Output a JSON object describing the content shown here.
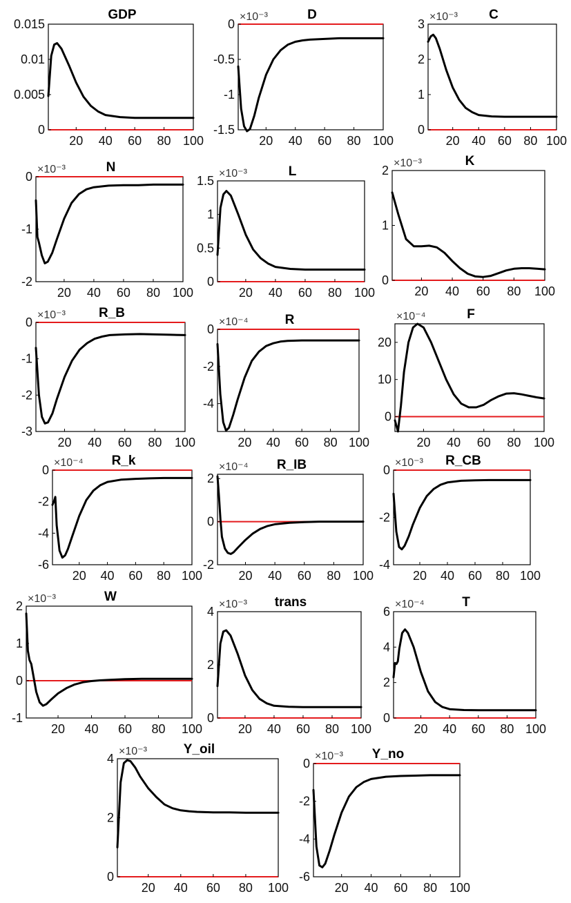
{
  "figure": {
    "background": "#ffffff",
    "line_color": "#000000",
    "zero_line_color": "#e41a1c"
  },
  "chart_data": [
    {
      "type": "line",
      "title": "GDP",
      "multiplier": "",
      "xlim": [
        1,
        100
      ],
      "ylim": [
        0,
        0.015
      ],
      "yticks": [
        {
          "v": 0,
          "l": "0"
        },
        {
          "v": 0.005,
          "l": "0.005"
        },
        {
          "v": 0.01,
          "l": "0.01"
        },
        {
          "v": 0.015,
          "l": "0.015"
        }
      ],
      "xticks": [
        20,
        40,
        60,
        80,
        100
      ],
      "x": [
        1,
        3,
        5,
        7,
        10,
        15,
        20,
        25,
        30,
        35,
        40,
        50,
        60,
        70,
        80,
        90,
        100
      ],
      "y": [
        0.0048,
        0.0105,
        0.0121,
        0.0123,
        0.0115,
        0.0092,
        0.0067,
        0.0047,
        0.0034,
        0.0026,
        0.0021,
        0.0018,
        0.0017,
        0.0017,
        0.0017,
        0.0017,
        0.0017
      ]
    },
    {
      "type": "line",
      "title": "D",
      "multiplier": "×10⁻³",
      "xlim": [
        1,
        100
      ],
      "ylim": [
        -1.5,
        0
      ],
      "yticks": [
        {
          "v": -1.5,
          "l": "-1.5"
        },
        {
          "v": -1,
          "l": "-1"
        },
        {
          "v": -0.5,
          "l": "-0.5"
        },
        {
          "v": 0,
          "l": "0"
        }
      ],
      "xticks": [
        20,
        40,
        60,
        80,
        100
      ],
      "x": [
        1,
        3,
        5,
        7,
        9,
        12,
        15,
        20,
        25,
        30,
        35,
        40,
        45,
        50,
        60,
        70,
        80,
        90,
        100
      ],
      "y": [
        -0.6,
        -1.2,
        -1.45,
        -1.52,
        -1.49,
        -1.3,
        -1.05,
        -0.72,
        -0.5,
        -0.37,
        -0.29,
        -0.25,
        -0.23,
        -0.22,
        -0.21,
        -0.2,
        -0.2,
        -0.2,
        -0.2
      ]
    },
    {
      "type": "line",
      "title": "C",
      "multiplier": "×10⁻³",
      "xlim": [
        1,
        100
      ],
      "ylim": [
        0,
        3
      ],
      "yticks": [
        {
          "v": 0,
          "l": "0"
        },
        {
          "v": 1,
          "l": "1"
        },
        {
          "v": 2,
          "l": "2"
        },
        {
          "v": 3,
          "l": "3"
        }
      ],
      "xticks": [
        20,
        40,
        60,
        80,
        100
      ],
      "x": [
        1,
        3,
        5,
        7,
        10,
        15,
        20,
        25,
        30,
        35,
        40,
        50,
        60,
        70,
        80,
        90,
        100
      ],
      "y": [
        2.5,
        2.65,
        2.7,
        2.6,
        2.3,
        1.7,
        1.2,
        0.85,
        0.62,
        0.5,
        0.42,
        0.38,
        0.37,
        0.37,
        0.37,
        0.37,
        0.37
      ]
    },
    {
      "type": "line",
      "title": "N",
      "multiplier": "×10⁻³",
      "xlim": [
        1,
        100
      ],
      "ylim": [
        -2,
        0
      ],
      "yticks": [
        {
          "v": -2,
          "l": "-2"
        },
        {
          "v": -1,
          "l": "-1"
        },
        {
          "v": 0,
          "l": "0"
        }
      ],
      "xticks": [
        20,
        40,
        60,
        80,
        100
      ],
      "x": [
        1,
        2,
        3,
        5,
        7,
        9,
        12,
        15,
        20,
        25,
        30,
        35,
        40,
        50,
        60,
        70,
        80,
        90,
        100
      ],
      "y": [
        -0.45,
        -1.15,
        -1.25,
        -1.5,
        -1.65,
        -1.62,
        -1.45,
        -1.2,
        -0.8,
        -0.5,
        -0.33,
        -0.24,
        -0.2,
        -0.17,
        -0.16,
        -0.16,
        -0.15,
        -0.15,
        -0.15
      ]
    },
    {
      "type": "line",
      "title": "L",
      "multiplier": "×10⁻³",
      "xlim": [
        1,
        100
      ],
      "ylim": [
        0,
        1.5
      ],
      "yticks": [
        {
          "v": 0,
          "l": "0"
        },
        {
          "v": 0.5,
          "l": "0.5"
        },
        {
          "v": 1,
          "l": "1"
        },
        {
          "v": 1.5,
          "l": "1.5"
        }
      ],
      "xticks": [
        20,
        40,
        60,
        80,
        100
      ],
      "x": [
        1,
        3,
        5,
        7,
        10,
        15,
        20,
        25,
        30,
        35,
        40,
        50,
        60,
        70,
        80,
        90,
        100
      ],
      "y": [
        0.4,
        1.1,
        1.3,
        1.35,
        1.28,
        1.0,
        0.7,
        0.48,
        0.35,
        0.27,
        0.22,
        0.19,
        0.18,
        0.18,
        0.18,
        0.18,
        0.18
      ]
    },
    {
      "type": "line",
      "title": "K",
      "multiplier": "×10⁻³",
      "xlim": [
        1,
        100
      ],
      "ylim": [
        0,
        2
      ],
      "yticks": [
        {
          "v": 0,
          "l": "0"
        },
        {
          "v": 1,
          "l": "1"
        },
        {
          "v": 2,
          "l": "2"
        }
      ],
      "xticks": [
        20,
        40,
        60,
        80,
        100
      ],
      "x": [
        1,
        5,
        10,
        15,
        20,
        25,
        30,
        35,
        40,
        45,
        50,
        55,
        60,
        65,
        70,
        75,
        80,
        85,
        90,
        95,
        100
      ],
      "y": [
        1.6,
        1.2,
        0.75,
        0.62,
        0.62,
        0.63,
        0.6,
        0.5,
        0.35,
        0.22,
        0.12,
        0.07,
        0.06,
        0.08,
        0.13,
        0.18,
        0.21,
        0.22,
        0.22,
        0.21,
        0.2
      ]
    },
    {
      "type": "line",
      "title": "R_B",
      "multiplier": "×10⁻³",
      "xlim": [
        1,
        100
      ],
      "ylim": [
        -3,
        0
      ],
      "yticks": [
        {
          "v": -3,
          "l": "-3"
        },
        {
          "v": -2,
          "l": "-2"
        },
        {
          "v": -1,
          "l": "-1"
        },
        {
          "v": 0,
          "l": "0"
        }
      ],
      "xticks": [
        20,
        40,
        60,
        80,
        100
      ],
      "x": [
        1,
        3,
        5,
        7,
        9,
        12,
        15,
        20,
        25,
        30,
        35,
        40,
        45,
        50,
        60,
        70,
        80,
        90,
        100
      ],
      "y": [
        -0.7,
        -2.0,
        -2.6,
        -2.78,
        -2.75,
        -2.5,
        -2.1,
        -1.5,
        -1.05,
        -0.75,
        -0.57,
        -0.45,
        -0.39,
        -0.35,
        -0.33,
        -0.32,
        -0.33,
        -0.34,
        -0.35
      ]
    },
    {
      "type": "line",
      "title": "R",
      "multiplier": "×10⁻⁴",
      "xlim": [
        1,
        100
      ],
      "ylim": [
        -5.5,
        0
      ],
      "yticks": [
        {
          "v": -4,
          "l": "-4"
        },
        {
          "v": -2,
          "l": "-2"
        },
        {
          "v": 0,
          "l": "0"
        }
      ],
      "xticks": [
        20,
        40,
        60,
        80,
        100
      ],
      "x": [
        1,
        3,
        5,
        7,
        9,
        12,
        15,
        20,
        25,
        30,
        35,
        40,
        45,
        50,
        60,
        70,
        80,
        90,
        100
      ],
      "y": [
        -0.8,
        -3.5,
        -5.0,
        -5.45,
        -5.3,
        -4.6,
        -3.8,
        -2.6,
        -1.7,
        -1.2,
        -0.9,
        -0.75,
        -0.66,
        -0.62,
        -0.6,
        -0.6,
        -0.6,
        -0.6,
        -0.6
      ]
    },
    {
      "type": "line",
      "title": "F",
      "multiplier": "×10⁻⁴",
      "xlim": [
        1,
        100
      ],
      "ylim": [
        -4,
        25
      ],
      "yticks": [
        {
          "v": 0,
          "l": "0"
        },
        {
          "v": 10,
          "l": "10"
        },
        {
          "v": 20,
          "l": "20"
        }
      ],
      "xticks": [
        20,
        40,
        60,
        80,
        100
      ],
      "x": [
        1,
        3,
        5,
        7,
        10,
        13,
        16,
        20,
        25,
        30,
        35,
        40,
        45,
        50,
        55,
        60,
        65,
        70,
        75,
        80,
        85,
        90,
        95,
        100
      ],
      "y": [
        -1,
        -4,
        3,
        12,
        20,
        24,
        25,
        24,
        20,
        15,
        10,
        6,
        3.5,
        2.5,
        2.5,
        3.2,
        4.5,
        5.5,
        6.2,
        6.3,
        6.0,
        5.6,
        5.2,
        4.9
      ]
    },
    {
      "type": "line",
      "title": "R_k",
      "multiplier": "×10⁻⁴",
      "xlim": [
        1,
        100
      ],
      "ylim": [
        -6,
        0
      ],
      "yticks": [
        {
          "v": -6,
          "l": "-6"
        },
        {
          "v": -4,
          "l": "-4"
        },
        {
          "v": -2,
          "l": "-2"
        },
        {
          "v": 0,
          "l": "0"
        }
      ],
      "xticks": [
        20,
        40,
        60,
        80,
        100
      ],
      "x": [
        1,
        2,
        3,
        4,
        6,
        8,
        10,
        12,
        15,
        20,
        25,
        30,
        35,
        40,
        50,
        60,
        70,
        80,
        90,
        100
      ],
      "y": [
        -2.2,
        -2.0,
        -1.7,
        -3.5,
        -5.1,
        -5.55,
        -5.4,
        -5.0,
        -4.2,
        -2.9,
        -1.9,
        -1.3,
        -0.95,
        -0.75,
        -0.6,
        -0.55,
        -0.52,
        -0.5,
        -0.5,
        -0.5
      ]
    },
    {
      "type": "line",
      "title": "R_IB",
      "multiplier": "×10⁻⁴",
      "xlim": [
        1,
        100
      ],
      "ylim": [
        -2,
        2.2
      ],
      "yticks": [
        {
          "v": -2,
          "l": "-2"
        },
        {
          "v": 0,
          "l": "0"
        },
        {
          "v": 2,
          "l": "2"
        }
      ],
      "xticks": [
        20,
        40,
        60,
        80,
        100
      ],
      "x": [
        1,
        2,
        3,
        4,
        6,
        8,
        10,
        12,
        15,
        20,
        25,
        30,
        35,
        40,
        50,
        60,
        70,
        80,
        90,
        100
      ],
      "y": [
        2.1,
        1.2,
        0.1,
        -0.7,
        -1.25,
        -1.45,
        -1.5,
        -1.42,
        -1.2,
        -0.85,
        -0.55,
        -0.34,
        -0.2,
        -0.12,
        -0.05,
        -0.02,
        0,
        0,
        0,
        0
      ]
    },
    {
      "type": "line",
      "title": "R_CB",
      "multiplier": "×10⁻³",
      "xlim": [
        1,
        100
      ],
      "ylim": [
        -4,
        0
      ],
      "yticks": [
        {
          "v": -4,
          "l": "-4"
        },
        {
          "v": -2,
          "l": "-2"
        },
        {
          "v": 0,
          "l": "0"
        }
      ],
      "xticks": [
        20,
        40,
        60,
        80,
        100
      ],
      "x": [
        1,
        3,
        5,
        7,
        9,
        12,
        15,
        20,
        25,
        30,
        35,
        40,
        50,
        60,
        70,
        80,
        90,
        100
      ],
      "y": [
        -1.0,
        -2.6,
        -3.25,
        -3.35,
        -3.2,
        -2.8,
        -2.3,
        -1.6,
        -1.1,
        -0.8,
        -0.62,
        -0.52,
        -0.45,
        -0.43,
        -0.42,
        -0.42,
        -0.42,
        -0.42
      ]
    },
    {
      "type": "line",
      "title": "W",
      "multiplier": "×10⁻³",
      "xlim": [
        1,
        100
      ],
      "ylim": [
        -1,
        2
      ],
      "yticks": [
        {
          "v": -1,
          "l": "-1"
        },
        {
          "v": 0,
          "l": "0"
        },
        {
          "v": 1,
          "l": "1"
        },
        {
          "v": 2,
          "l": "2"
        }
      ],
      "xticks": [
        20,
        40,
        60,
        80,
        100
      ],
      "x": [
        1,
        2,
        3,
        4,
        5,
        7,
        9,
        11,
        13,
        16,
        20,
        25,
        30,
        35,
        40,
        45,
        50,
        60,
        70,
        80,
        90,
        100
      ],
      "y": [
        1.8,
        0.8,
        0.55,
        0.45,
        0.2,
        -0.3,
        -0.58,
        -0.67,
        -0.63,
        -0.5,
        -0.34,
        -0.2,
        -0.1,
        -0.04,
        -0.01,
        0.01,
        0.02,
        0.04,
        0.05,
        0.05,
        0.05,
        0.05
      ]
    },
    {
      "type": "line",
      "title": "trans",
      "multiplier": "×10⁻³",
      "xlim": [
        1,
        100
      ],
      "ylim": [
        0,
        4
      ],
      "yticks": [
        {
          "v": 0,
          "l": "0"
        },
        {
          "v": 2,
          "l": "2"
        },
        {
          "v": 4,
          "l": "4"
        }
      ],
      "xticks": [
        20,
        40,
        60,
        80,
        100
      ],
      "x": [
        1,
        3,
        5,
        7,
        10,
        15,
        20,
        25,
        30,
        35,
        40,
        50,
        60,
        70,
        80,
        90,
        100
      ],
      "y": [
        1.2,
        2.8,
        3.25,
        3.3,
        3.1,
        2.4,
        1.6,
        1.05,
        0.72,
        0.55,
        0.46,
        0.42,
        0.41,
        0.41,
        0.41,
        0.41,
        0.41
      ]
    },
    {
      "type": "line",
      "title": "T",
      "multiplier": "×10⁻⁴",
      "xlim": [
        1,
        100
      ],
      "ylim": [
        0,
        6
      ],
      "yticks": [
        {
          "v": 0,
          "l": "0"
        },
        {
          "v": 2,
          "l": "2"
        },
        {
          "v": 4,
          "l": "4"
        },
        {
          "v": 6,
          "l": "6"
        }
      ],
      "xticks": [
        20,
        40,
        60,
        80,
        100
      ],
      "x": [
        1,
        2,
        3,
        4,
        5,
        7,
        9,
        11,
        15,
        20,
        25,
        30,
        35,
        40,
        50,
        60,
        70,
        80,
        90,
        100
      ],
      "y": [
        2.3,
        3.1,
        3.05,
        3.2,
        3.9,
        4.8,
        5.0,
        4.8,
        4.0,
        2.6,
        1.5,
        0.9,
        0.62,
        0.5,
        0.45,
        0.44,
        0.44,
        0.44,
        0.44,
        0.44
      ]
    },
    {
      "type": "line",
      "title": "Y_oil",
      "multiplier": "×10⁻³",
      "xlim": [
        1,
        100
      ],
      "ylim": [
        0,
        4
      ],
      "yticks": [
        {
          "v": 0,
          "l": "0"
        },
        {
          "v": 2,
          "l": "2"
        },
        {
          "v": 4,
          "l": "4"
        }
      ],
      "xticks": [
        20,
        40,
        60,
        80,
        100
      ],
      "x": [
        1,
        3,
        5,
        7,
        9,
        12,
        15,
        20,
        25,
        30,
        35,
        40,
        45,
        50,
        60,
        70,
        80,
        90,
        100
      ],
      "y": [
        1.0,
        3.2,
        3.85,
        3.95,
        3.92,
        3.7,
        3.4,
        3.0,
        2.7,
        2.45,
        2.32,
        2.25,
        2.22,
        2.2,
        2.18,
        2.18,
        2.17,
        2.17,
        2.17
      ]
    },
    {
      "type": "line",
      "title": "Y_no",
      "multiplier": "×10⁻³",
      "xlim": [
        1,
        100
      ],
      "ylim": [
        -6,
        0
      ],
      "yticks": [
        {
          "v": -6,
          "l": "-6"
        },
        {
          "v": -4,
          "l": "-4"
        },
        {
          "v": -2,
          "l": "-2"
        },
        {
          "v": 0,
          "l": "0"
        }
      ],
      "xticks": [
        20,
        40,
        60,
        80,
        100
      ],
      "x": [
        1,
        3,
        5,
        7,
        9,
        12,
        15,
        20,
        25,
        30,
        35,
        40,
        50,
        60,
        70,
        80,
        90,
        100
      ],
      "y": [
        -1.4,
        -4.4,
        -5.4,
        -5.5,
        -5.3,
        -4.6,
        -3.8,
        -2.6,
        -1.75,
        -1.25,
        -0.98,
        -0.82,
        -0.7,
        -0.66,
        -0.64,
        -0.62,
        -0.62,
        -0.62
      ]
    }
  ]
}
